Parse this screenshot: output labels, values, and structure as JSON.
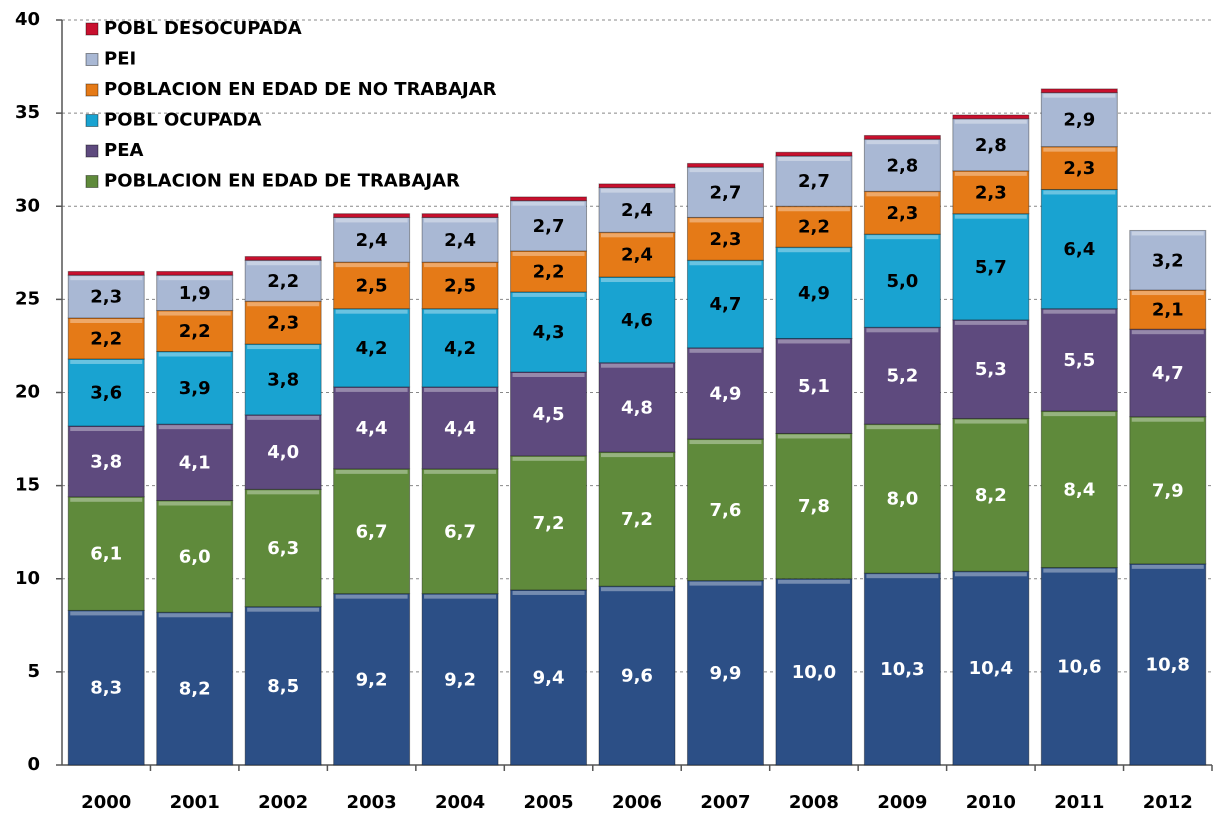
{
  "chart_data": {
    "type": "stacked_bar",
    "categories": [
      "2000",
      "2001",
      "2002",
      "2003",
      "2004",
      "2005",
      "2006",
      "2007",
      "2008",
      "2009",
      "2010",
      "2011",
      "2012"
    ],
    "series": [
      {
        "color": "#2c4f86",
        "label_color": "#ffffff",
        "values": [
          8.3,
          8.2,
          8.5,
          9.2,
          9.2,
          9.4,
          9.6,
          9.9,
          10.0,
          10.3,
          10.4,
          10.6,
          10.8
        ],
        "value_labels": [
          "8,3",
          "8,2",
          "8,5",
          "9,2",
          "9,2",
          "9,4",
          "9,6",
          "9,9",
          "10,0",
          "10,3",
          "10,4",
          "10,6",
          "10,8"
        ]
      },
      {
        "name": "POBLACION EN EDAD DE TRABAJAR",
        "color": "#5f8a3b",
        "label_color": "#ffffff",
        "values": [
          6.1,
          6.0,
          6.3,
          6.7,
          6.7,
          7.2,
          7.2,
          7.6,
          7.8,
          8.0,
          8.2,
          8.4,
          7.9
        ],
        "value_labels": [
          "6,1",
          "6,0",
          "6,3",
          "6,7",
          "6,7",
          "7,2",
          "7,2",
          "7,6",
          "7,8",
          "8,0",
          "8,2",
          "8,4",
          "7,9"
        ]
      },
      {
        "name": "PEA",
        "color": "#5e4a7e",
        "label_color": "#ffffff",
        "values": [
          3.8,
          4.1,
          4.0,
          4.4,
          4.4,
          4.5,
          4.8,
          4.9,
          5.1,
          5.2,
          5.3,
          5.5,
          4.7
        ],
        "value_labels": [
          "3,8",
          "4,1",
          "4,0",
          "4,4",
          "4,4",
          "4,5",
          "4,8",
          "4,9",
          "5,1",
          "5,2",
          "5,3",
          "5,5",
          "4,7"
        ]
      },
      {
        "name": "POBL OCUPADA",
        "color": "#19a3d1",
        "label_color": "#000000",
        "values": [
          3.6,
          3.9,
          3.8,
          4.2,
          4.2,
          4.3,
          4.6,
          4.7,
          4.9,
          5.0,
          5.7,
          6.4,
          null
        ],
        "value_labels": [
          "3,6",
          "3,9",
          "3,8",
          "4,2",
          "4,2",
          "4,3",
          "4,6",
          "4,7",
          "4,9",
          "5,0",
          "5,7",
          "6,4",
          null
        ]
      },
      {
        "name": "POBLACION EN EDAD DE NO TRABAJAR",
        "color": "#e57a17",
        "label_color": "#000000",
        "values": [
          2.2,
          2.2,
          2.3,
          2.5,
          2.5,
          2.2,
          2.4,
          2.3,
          2.2,
          2.3,
          2.3,
          2.3,
          2.1
        ],
        "value_labels": [
          "2,2",
          "2,2",
          "2,3",
          "2,5",
          "2,5",
          "2,2",
          "2,4",
          "2,3",
          "2,2",
          "2,3",
          "2,3",
          "2,3",
          "2,1"
        ]
      },
      {
        "name": "PEI",
        "color": "#a9b8d4",
        "label_color": "#000000",
        "values": [
          2.3,
          1.9,
          2.2,
          2.4,
          2.4,
          2.7,
          2.4,
          2.7,
          2.7,
          2.8,
          2.8,
          2.9,
          3.2
        ],
        "value_labels": [
          "2,3",
          "1,9",
          "2,2",
          "2,4",
          "2,4",
          "2,7",
          "2,4",
          "2,7",
          "2,7",
          "2,8",
          "2,8",
          "2,9",
          "3,2"
        ]
      },
      {
        "name": "POBL DESOCUPADA",
        "color": "#c8102e",
        "values": [
          0.2,
          0.2,
          0.2,
          0.2,
          0.2,
          0.2,
          0.2,
          0.2,
          0.2,
          0.2,
          0.2,
          0.2,
          null
        ]
      }
    ],
    "ylim": [
      0,
      40
    ],
    "yticks": [
      0,
      5,
      10,
      15,
      20,
      25,
      30,
      35,
      40
    ],
    "grid": true,
    "legend": "top-left"
  }
}
